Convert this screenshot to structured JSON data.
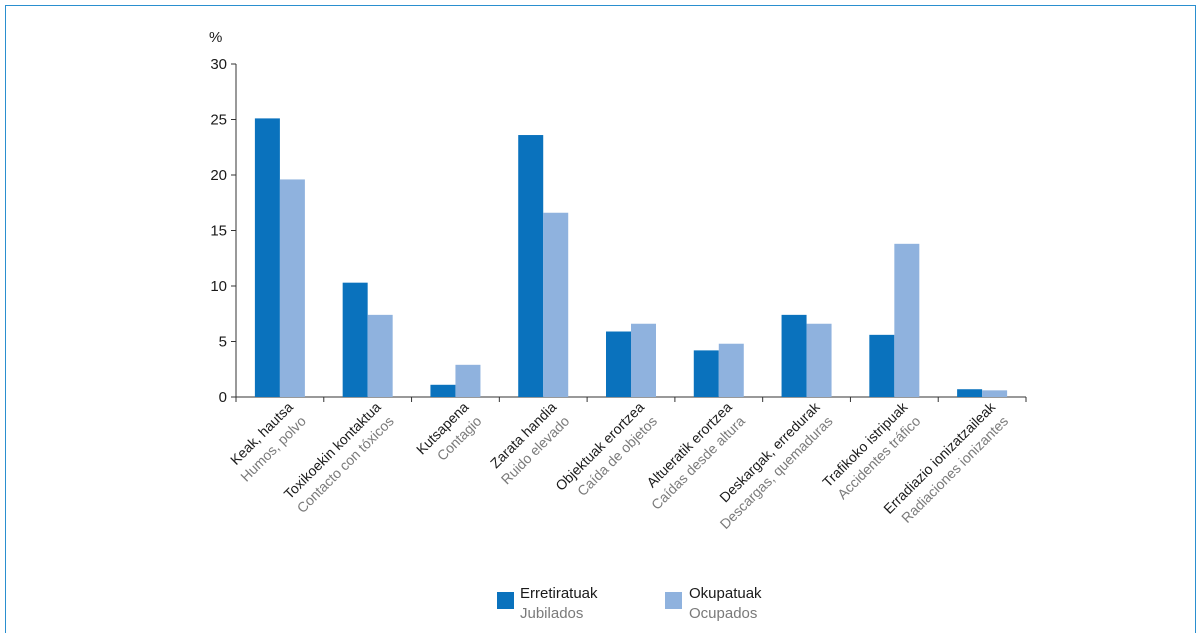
{
  "chart_data": {
    "type": "bar",
    "ylabel": "%",
    "ylim": [
      0,
      30
    ],
    "yticks": [
      "0",
      "5",
      "10",
      "15",
      "20",
      "25",
      "30"
    ],
    "categories": [
      {
        "eu": "Keak, hautsa",
        "es": "Humos, polvo"
      },
      {
        "eu": "Toxikoekin kontaktua",
        "es": "Contacto con tóxicos"
      },
      {
        "eu": "Kutsapena",
        "es": "Contagio"
      },
      {
        "eu": "Zarata handia",
        "es": "Ruido elevado"
      },
      {
        "eu": "Objektuak erortzea",
        "es": "Caída de objetos"
      },
      {
        "eu": "Altueratik erortzea",
        "es": "Caídas desde altura"
      },
      {
        "eu": "Deskargak, erredurak",
        "es": "Descargas, quemaduras"
      },
      {
        "eu": "Trafikoko istripuak",
        "es": "Accidentes tráfico"
      },
      {
        "eu": "Erradiazio ionizatzaileak",
        "es": "Radiaciones ionizantes"
      }
    ],
    "series": [
      {
        "name": "Erretiratuak",
        "name_es": "Jubilados",
        "color": "#0a72bd",
        "values": [
          25.1,
          10.3,
          1.1,
          23.6,
          5.9,
          4.2,
          7.4,
          5.6,
          0.7
        ]
      },
      {
        "name": "Okupatuak",
        "name_es": "Ocupados",
        "color": "#8fb2de",
        "values": [
          19.6,
          7.4,
          2.9,
          16.6,
          6.6,
          4.8,
          6.6,
          13.8,
          0.6
        ]
      }
    ],
    "legend": "bottom-center"
  }
}
